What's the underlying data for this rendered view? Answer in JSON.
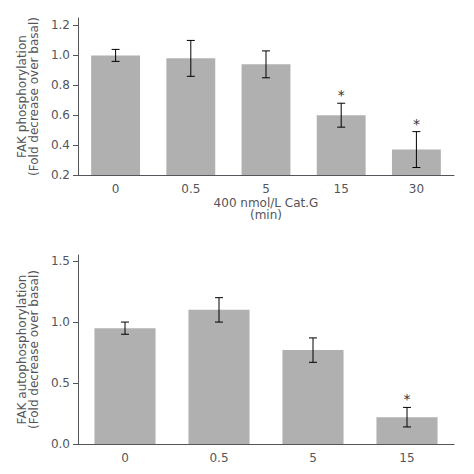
{
  "chart_data": [
    {
      "type": "bar",
      "categories": [
        "0",
        "0.5",
        "5",
        "15",
        "30"
      ],
      "values": [
        1.0,
        0.98,
        0.94,
        0.6,
        0.37
      ],
      "errors": [
        0.04,
        0.12,
        0.09,
        0.08,
        0.12
      ],
      "color": "#b0b0b0",
      "xlabel": "400 nmol/L Cat.G\n(min)",
      "ylabel": "FAK phosphorylation\n(Fold decrease over basal)",
      "ylim": [
        0.2,
        1.25
      ],
      "yticks": [
        0.2,
        0.4,
        0.6,
        0.8,
        {
          "value": 1.0,
          "label": "1.0"
        },
        1.2
      ],
      "annotations": [
        {
          "category": "15",
          "text": "*"
        },
        {
          "category": "30",
          "text": "*"
        }
      ],
      "grid": false
    },
    {
      "type": "bar",
      "categories": [
        "0",
        "0.5",
        "5",
        "15"
      ],
      "values": [
        0.95,
        1.1,
        0.77,
        0.22
      ],
      "errors": [
        0.05,
        0.1,
        0.1,
        0.08
      ],
      "color": "#b0b0b0",
      "ylabel": "FAK autophosphorylation\n(Fold decrease over basal)",
      "ylim": [
        0.0,
        1.55
      ],
      "yticks": [
        {
          "value": 0.0,
          "label": "0.0"
        },
        0.5,
        {
          "value": 1.0,
          "label": "1.0"
        },
        1.5
      ],
      "annotations": [
        {
          "category": "15",
          "text": "*"
        }
      ],
      "grid": false
    }
  ]
}
